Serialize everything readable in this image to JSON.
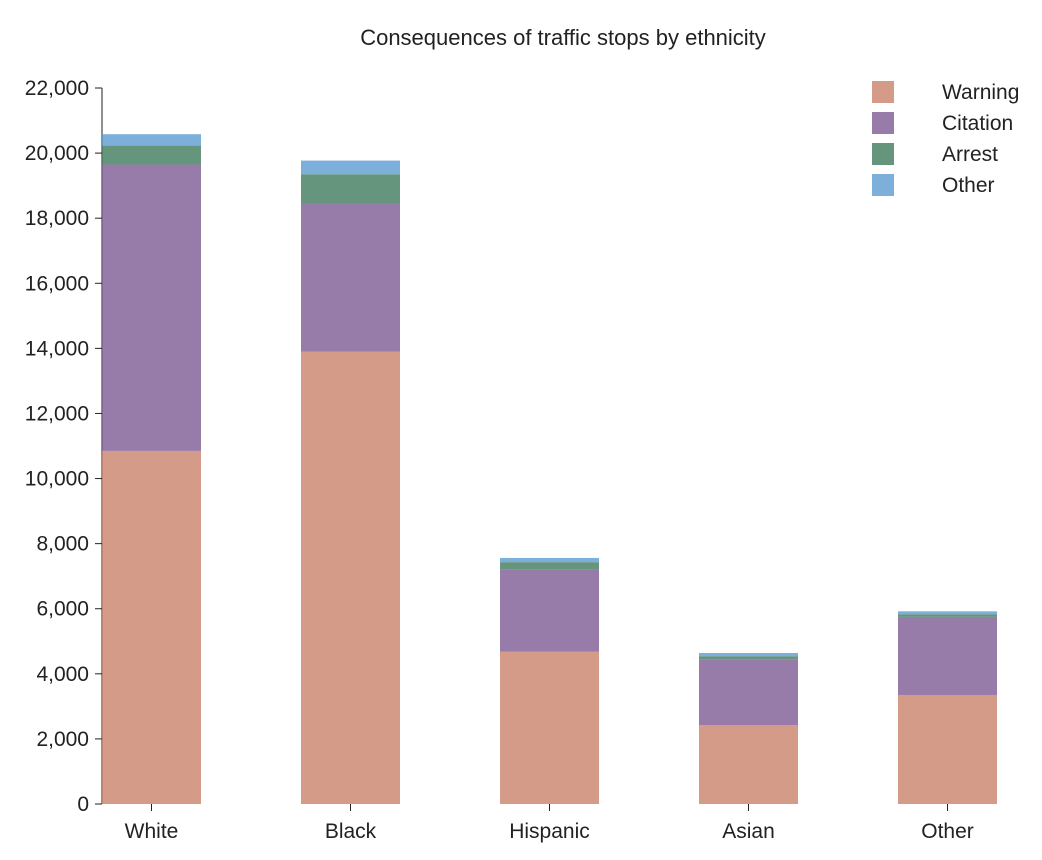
{
  "chart_data": {
    "type": "bar",
    "stacked": true,
    "title": "Consequences of traffic stops by ethnicity",
    "categories": [
      "White",
      "Black",
      "Hispanic",
      "Asian",
      "Other"
    ],
    "series": [
      {
        "name": "Warning",
        "color": "#c9826c",
        "values": [
          10850,
          13900,
          4680,
          2420,
          3350
        ]
      },
      {
        "name": "Citation",
        "color": "#7d5a92",
        "values": [
          8800,
          4550,
          2520,
          2030,
          2400
        ]
      },
      {
        "name": "Arrest",
        "color": "#3f7a5c",
        "values": [
          580,
          900,
          230,
          90,
          80
        ]
      },
      {
        "name": "Other",
        "color": "#5b9bd0",
        "values": [
          350,
          420,
          130,
          100,
          90
        ]
      }
    ],
    "ylim": [
      0,
      22000
    ],
    "yticks": [
      0,
      2000,
      4000,
      6000,
      8000,
      10000,
      12000,
      14000,
      16000,
      18000,
      20000,
      22000
    ],
    "ytick_labels": [
      "0",
      "2,000",
      "4,000",
      "6,000",
      "8,000",
      "10,000",
      "12,000",
      "14,000",
      "16,000",
      "18,000",
      "20,000",
      "22,000"
    ],
    "legend_position": "top-right",
    "grid": false
  }
}
